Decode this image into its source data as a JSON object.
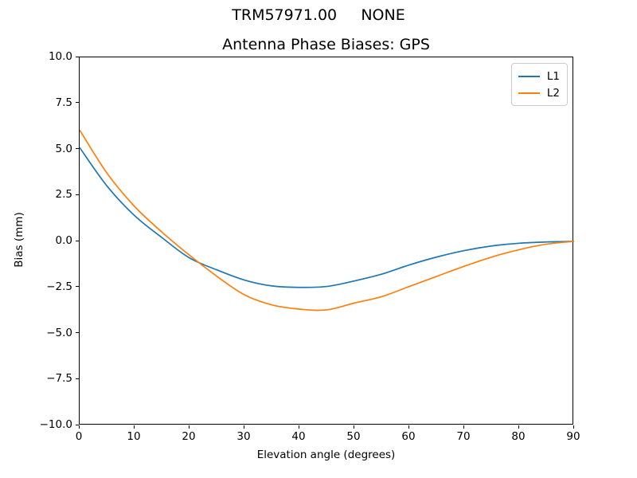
{
  "figure": {
    "suptitle": "TRM57971.00     NONE",
    "background": "#ffffff",
    "axis_color": "#000000",
    "legend_border_color": "#cccccc"
  },
  "chart_data": {
    "type": "line",
    "suptitle": "TRM57971.00     NONE",
    "title": "Antenna Phase Biases: GPS",
    "xlabel": "Elevation angle (degrees)",
    "ylabel": "Bias (mm)",
    "xlim": [
      0,
      90
    ],
    "ylim": [
      -10.0,
      10.0
    ],
    "grid": false,
    "legend_position": "upper right",
    "xtick_labels": [
      "0",
      "10",
      "20",
      "30",
      "40",
      "50",
      "60",
      "70",
      "80",
      "90"
    ],
    "xtick_values": [
      0,
      10,
      20,
      30,
      40,
      50,
      60,
      70,
      80,
      90
    ],
    "ytick_labels": [
      "−10.0",
      "−7.5",
      "−5.0",
      "−2.5",
      "0.0",
      "2.5",
      "5.0",
      "7.5",
      "10.0"
    ],
    "ytick_values": [
      -10.0,
      -7.5,
      -5.0,
      -2.5,
      0.0,
      2.5,
      5.0,
      7.5,
      10.0
    ],
    "x": [
      0,
      5,
      10,
      15,
      20,
      25,
      30,
      35,
      40,
      45,
      50,
      55,
      60,
      65,
      70,
      75,
      80,
      85,
      90
    ],
    "series": [
      {
        "name": "L1",
        "color": "#1f77b4",
        "values": [
          5.1,
          3.0,
          1.4,
          0.2,
          -0.9,
          -1.55,
          -2.1,
          -2.42,
          -2.5,
          -2.45,
          -2.15,
          -1.78,
          -1.28,
          -0.85,
          -0.5,
          -0.25,
          -0.1,
          -0.03,
          0.0
        ]
      },
      {
        "name": "L2",
        "color": "#ff7f0e",
        "values": [
          6.05,
          3.7,
          1.9,
          0.5,
          -0.75,
          -1.9,
          -2.9,
          -3.45,
          -3.68,
          -3.72,
          -3.35,
          -3.0,
          -2.45,
          -1.9,
          -1.35,
          -0.85,
          -0.45,
          -0.15,
          0.0
        ]
      }
    ]
  }
}
